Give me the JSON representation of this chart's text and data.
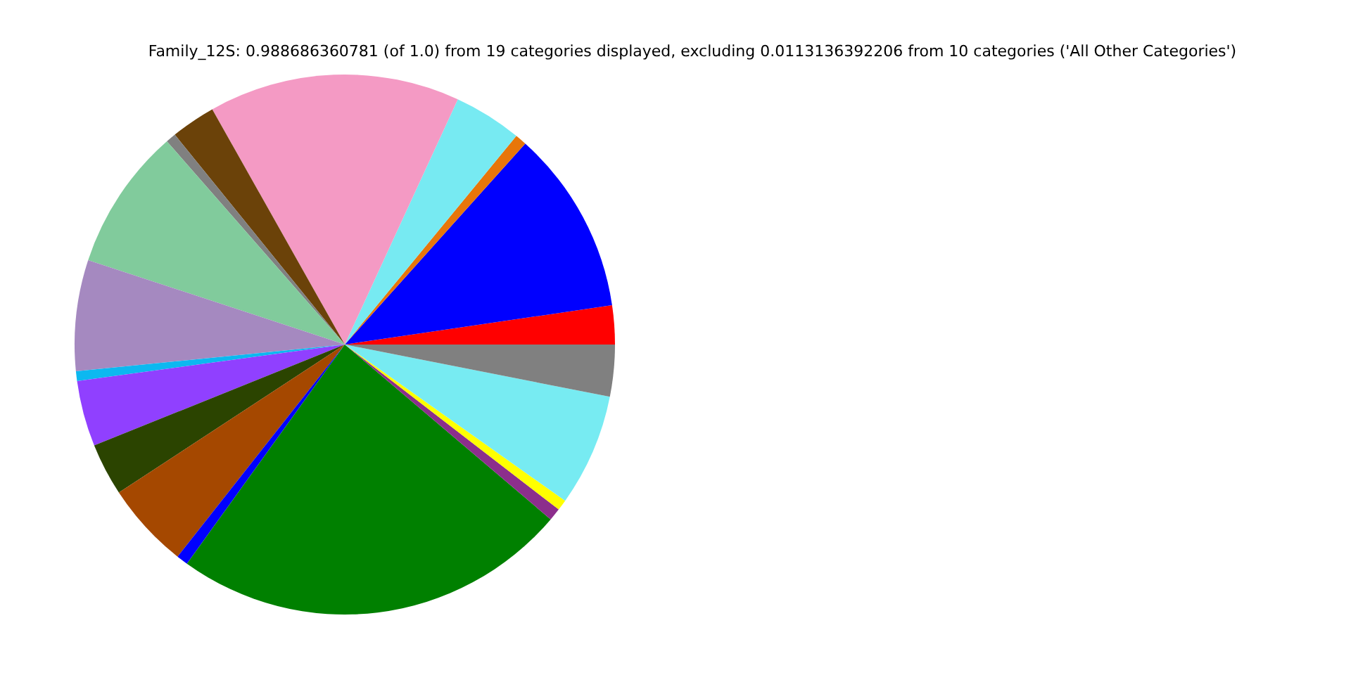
{
  "chart_data": {
    "type": "pie",
    "title": "Family_12S: 0.988686360781 (of 1.0) from 19 categories displayed, excluding 0.0113136392206 from 10 categories ('All Other Categories')",
    "categories": [
      null,
      null,
      null,
      null,
      null,
      null,
      null,
      null,
      null,
      null,
      null,
      null,
      null,
      null,
      null,
      null,
      null,
      null,
      null
    ],
    "values": [
      2.33,
      11.03,
      0.69,
      4.08,
      15.03,
      2.67,
      0.61,
      8.5,
      6.64,
      0.58,
      3.94,
      3.14,
      5.14,
      0.69,
      23.72,
      0.75,
      0.64,
      6.72,
      3.1
    ],
    "colors": [
      "#ff0000",
      "#0000ff",
      "#e8760a",
      "#77eaf2",
      "#f49ac4",
      "#6b4209",
      "#808080",
      "#81cb9c",
      "#a589c0",
      "#0cb8f0",
      "#9040ff",
      "#2b4400",
      "#a54800",
      "#0000ff",
      "#008000",
      "#8c2e8c",
      "#ffff00",
      "#77ebf2",
      "#808080"
    ]
  }
}
